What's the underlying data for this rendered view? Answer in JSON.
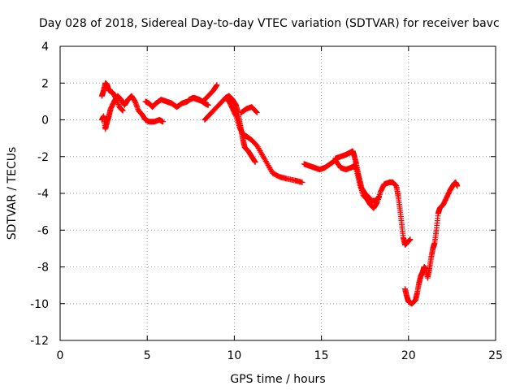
{
  "chart_data": {
    "type": "scatter",
    "title": "Day 028 of 2018, Sidereal Day-to-day VTEC variation (SDTVAR) for receiver bavc",
    "xlabel": "GPS time / hours",
    "ylabel": "SDTVAR / TECUs",
    "xlim": [
      0,
      25
    ],
    "ylim": [
      -12,
      4
    ],
    "xticks": [
      0,
      5,
      10,
      15,
      20,
      25
    ],
    "yticks": [
      -12,
      -10,
      -8,
      -6,
      -4,
      -2,
      0,
      2,
      4
    ],
    "grid": true,
    "marker": "+",
    "series": [
      {
        "name": "SDTVAR",
        "color": "#ff0000",
        "segments": [
          [
            [
              2.4,
              1.3
            ],
            [
              2.5,
              1.6
            ],
            [
              2.6,
              2.0
            ],
            [
              2.7,
              1.9
            ],
            [
              2.8,
              1.6
            ],
            [
              3.0,
              1.5
            ],
            [
              3.2,
              1.2
            ],
            [
              3.4,
              0.7
            ],
            [
              3.6,
              0.5
            ]
          ],
          [
            [
              2.4,
              0.0
            ],
            [
              2.5,
              0.2
            ],
            [
              2.6,
              -0.5
            ],
            [
              2.7,
              -0.1
            ],
            [
              2.8,
              0.2
            ],
            [
              2.9,
              0.6
            ],
            [
              3.1,
              1.0
            ],
            [
              3.3,
              1.3
            ],
            [
              3.5,
              1.1
            ],
            [
              3.7,
              0.8
            ],
            [
              3.9,
              1.1
            ],
            [
              4.1,
              1.3
            ],
            [
              4.3,
              1.0
            ],
            [
              4.5,
              0.5
            ],
            [
              4.7,
              0.3
            ],
            [
              4.9,
              0.0
            ],
            [
              5.1,
              -0.1
            ],
            [
              5.4,
              -0.1
            ],
            [
              5.7,
              0.0
            ],
            [
              5.9,
              -0.1
            ]
          ],
          [
            [
              4.9,
              1.0
            ],
            [
              5.1,
              0.9
            ],
            [
              5.3,
              0.7
            ],
            [
              5.5,
              0.9
            ],
            [
              5.8,
              1.1
            ],
            [
              6.1,
              1.0
            ],
            [
              6.4,
              0.9
            ],
            [
              6.7,
              0.7
            ],
            [
              7.0,
              0.9
            ],
            [
              7.3,
              1.0
            ],
            [
              7.6,
              1.2
            ],
            [
              7.9,
              1.1
            ],
            [
              8.2,
              1.0
            ],
            [
              8.5,
              1.3
            ],
            [
              8.8,
              1.6
            ],
            [
              9.0,
              1.9
            ]
          ],
          [
            [
              7.4,
              1.1
            ],
            [
              7.7,
              1.2
            ],
            [
              8.0,
              1.1
            ],
            [
              8.3,
              0.9
            ],
            [
              8.5,
              0.8
            ]
          ],
          [
            [
              8.3,
              0.0
            ],
            [
              8.6,
              0.3
            ],
            [
              8.9,
              0.6
            ],
            [
              9.2,
              0.9
            ],
            [
              9.5,
              1.2
            ],
            [
              9.7,
              1.3
            ],
            [
              9.9,
              1.1
            ],
            [
              10.1,
              0.8
            ],
            [
              10.2,
              0.4
            ],
            [
              10.3,
              -0.1
            ],
            [
              10.4,
              -0.6
            ],
            [
              10.5,
              -1.1
            ],
            [
              10.6,
              -1.5
            ],
            [
              10.8,
              -1.7
            ],
            [
              11.0,
              -2.0
            ],
            [
              11.2,
              -2.3
            ]
          ],
          [
            [
              9.5,
              1.2
            ],
            [
              9.7,
              1.0
            ],
            [
              9.9,
              0.6
            ],
            [
              10.1,
              0.2
            ],
            [
              10.3,
              -0.4
            ],
            [
              10.5,
              -0.8
            ],
            [
              10.7,
              -0.9
            ],
            [
              11.0,
              -1.1
            ],
            [
              11.3,
              -1.4
            ],
            [
              11.6,
              -1.9
            ],
            [
              11.9,
              -2.4
            ],
            [
              12.2,
              -2.9
            ],
            [
              12.6,
              -3.1
            ],
            [
              13.0,
              -3.2
            ],
            [
              13.5,
              -3.3
            ],
            [
              13.9,
              -3.4
            ]
          ],
          [
            [
              10.4,
              0.4
            ],
            [
              10.7,
              0.6
            ],
            [
              11.0,
              0.7
            ],
            [
              11.3,
              0.4
            ]
          ],
          [
            [
              14.0,
              -2.4
            ],
            [
              14.3,
              -2.5
            ],
            [
              14.6,
              -2.6
            ],
            [
              14.9,
              -2.7
            ],
            [
              15.2,
              -2.6
            ],
            [
              15.5,
              -2.4
            ],
            [
              15.8,
              -2.2
            ],
            [
              16.1,
              -2.6
            ],
            [
              16.4,
              -2.7
            ],
            [
              16.7,
              -2.6
            ],
            [
              16.9,
              -2.5
            ],
            [
              17.0,
              -2.7
            ],
            [
              17.2,
              -3.5
            ],
            [
              17.4,
              -4.1
            ],
            [
              17.6,
              -4.3
            ],
            [
              17.8,
              -4.6
            ],
            [
              18.0,
              -4.8
            ],
            [
              18.2,
              -4.5
            ],
            [
              18.4,
              -3.9
            ],
            [
              18.6,
              -3.5
            ],
            [
              18.9,
              -3.4
            ],
            [
              19.1,
              -3.4
            ],
            [
              19.3,
              -3.6
            ],
            [
              19.4,
              -4.1
            ],
            [
              19.5,
              -4.8
            ],
            [
              19.6,
              -5.6
            ],
            [
              19.7,
              -6.4
            ],
            [
              19.8,
              -6.8
            ],
            [
              19.9,
              -6.7
            ],
            [
              20.1,
              -6.5
            ]
          ],
          [
            [
              15.8,
              -2.1
            ],
            [
              16.1,
              -2.0
            ],
            [
              16.4,
              -1.9
            ],
            [
              16.6,
              -1.8
            ],
            [
              16.8,
              -1.7
            ],
            [
              16.9,
              -2.0
            ],
            [
              17.0,
              -2.4
            ],
            [
              17.1,
              -2.9
            ],
            [
              17.2,
              -3.3
            ],
            [
              17.3,
              -3.7
            ],
            [
              17.5,
              -4.0
            ],
            [
              17.7,
              -4.2
            ],
            [
              17.9,
              -4.4
            ],
            [
              18.1,
              -4.4
            ],
            [
              18.3,
              -4.2
            ]
          ],
          [
            [
              19.8,
              -9.2
            ],
            [
              19.9,
              -9.6
            ],
            [
              20.0,
              -9.9
            ],
            [
              20.2,
              -10.0
            ],
            [
              20.4,
              -9.8
            ],
            [
              20.5,
              -9.4
            ],
            [
              20.6,
              -8.9
            ],
            [
              20.7,
              -8.5
            ],
            [
              20.8,
              -8.3
            ],
            [
              20.9,
              -8.0
            ],
            [
              21.0,
              -8.1
            ],
            [
              21.1,
              -8.6
            ],
            [
              21.2,
              -8.1
            ],
            [
              21.3,
              -7.5
            ],
            [
              21.4,
              -7.0
            ],
            [
              21.5,
              -6.7
            ],
            [
              21.6,
              -6.0
            ],
            [
              21.7,
              -5.1
            ],
            [
              21.8,
              -4.8
            ],
            [
              22.0,
              -4.6
            ],
            [
              22.2,
              -4.2
            ],
            [
              22.4,
              -3.8
            ],
            [
              22.6,
              -3.5
            ],
            [
              22.7,
              -3.4
            ],
            [
              22.8,
              -3.6
            ]
          ]
        ]
      }
    ]
  }
}
